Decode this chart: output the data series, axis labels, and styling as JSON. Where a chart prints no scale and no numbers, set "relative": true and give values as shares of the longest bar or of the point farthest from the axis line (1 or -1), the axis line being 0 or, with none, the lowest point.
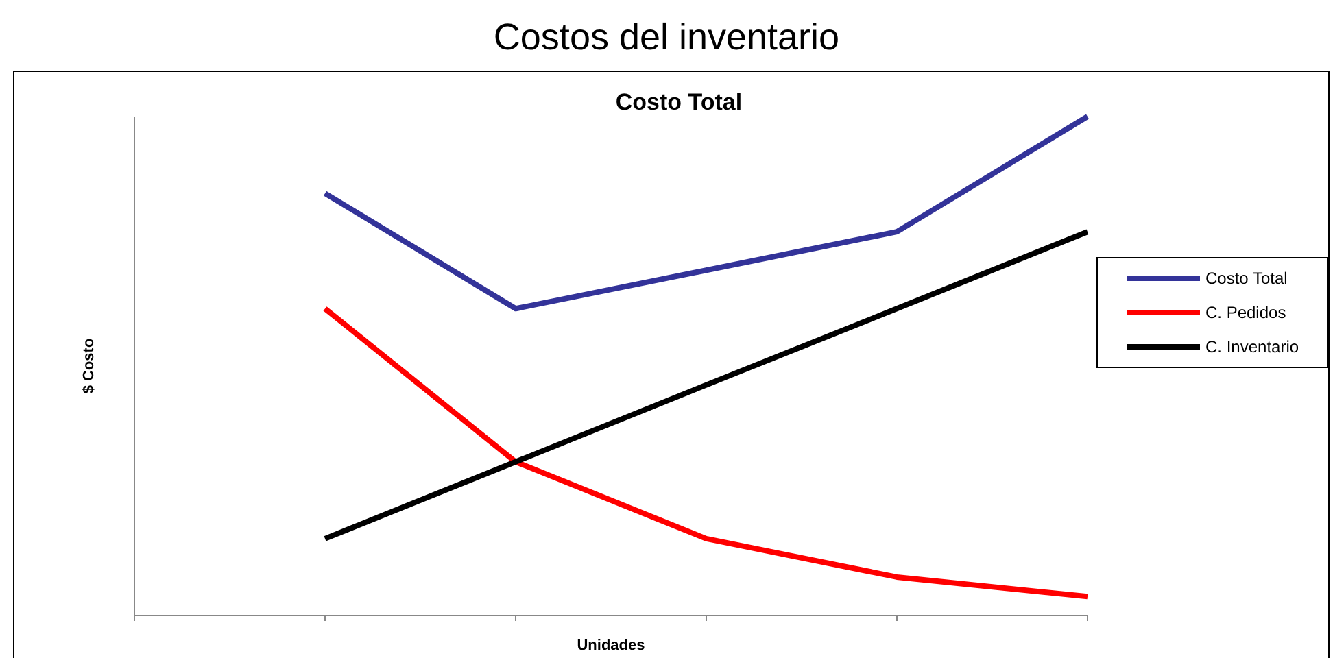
{
  "chart_data": {
    "type": "line",
    "title": "Costos del inventario",
    "subtitle": "Costo Total",
    "xlabel": "Unidades",
    "ylabel": "$ Costo",
    "relative": true,
    "categories": [
      null,
      null,
      null,
      null,
      null,
      null
    ],
    "legend": "right",
    "marker": "none",
    "line_style": "solid",
    "series": [
      {
        "name": "Costo Total",
        "color": "#333399",
        "values": [
          null,
          0.846,
          0.615,
          0.692,
          0.769,
          1
        ]
      },
      {
        "name": "C. Pedidos",
        "color": "#ff0000",
        "values": [
          null,
          0.615,
          0.308,
          0.154,
          0.077,
          0.038
        ]
      },
      {
        "name": "C. Inventario",
        "color": "#000000",
        "values": [
          null,
          0.154,
          0.308,
          0.462,
          0.615,
          0.769
        ]
      }
    ]
  }
}
